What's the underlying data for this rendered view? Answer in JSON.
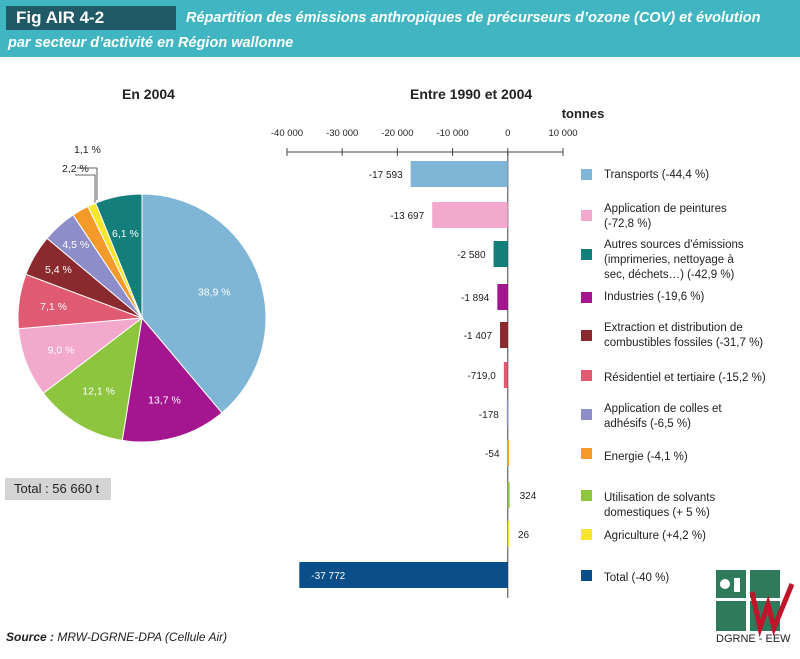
{
  "header": {
    "fig_tag": "Fig AIR 4-2",
    "title_line1": "Répartition des émissions anthropiques de précurseurs d’ozone (COV) et évolution",
    "title_line2": "par secteur d’activité en Région wallonne"
  },
  "left_subtitle": "En 2004",
  "right_subtitle": "Entre 1990 et 2004",
  "total_label": "Total : 56 660 t",
  "source_label": "Source :",
  "source_text": " MRW-DGRNE-DPA (Cellule Air)",
  "logo_text": "DGRNE - EEW",
  "chart_data": [
    {
      "type": "pie",
      "title": "En 2004",
      "slices": [
        {
          "label": "38,9 %",
          "value": 38.9,
          "color": "#7fb5d5"
        },
        {
          "label": "13,7 %",
          "value": 13.7,
          "color": "#a3168f"
        },
        {
          "label": "12,1 %",
          "value": 12.1,
          "color": "#8dc53e"
        },
        {
          "label": "9,0 %",
          "value": 9.0,
          "color": "#f3a9cd"
        },
        {
          "label": "7,1 %",
          "value": 7.1,
          "color": "#e05a72"
        },
        {
          "label": "5,4 %",
          "value": 5.4,
          "color": "#8b2a2e"
        },
        {
          "label": "4,5 %",
          "value": 4.5,
          "color": "#8c8dc9"
        },
        {
          "label": "2,2 %",
          "value": 2.2,
          "color": "#f39a2b"
        },
        {
          "label": "1,1 %",
          "value": 1.1,
          "color": "#f7e62d"
        },
        {
          "label": "6,1 %",
          "value": 6.1,
          "color": "#137e7a"
        }
      ]
    },
    {
      "type": "bar",
      "title": "Entre 1990 et 2004",
      "unit_label": "tonnes",
      "xlim": [
        -40000,
        10000
      ],
      "ticks": [
        -40000,
        -30000,
        -20000,
        -10000,
        0,
        10000
      ],
      "tick_labels": [
        "-40 000",
        "-30 000",
        "-20 000",
        "-10 000",
        "0",
        "10 000"
      ],
      "series": [
        {
          "category": "Transports (-44,4 %)",
          "value": -17593,
          "label": "-17 593",
          "color": "#7fb5d5"
        },
        {
          "category": "Application de peintures (-72,8 %)",
          "value": -13697,
          "label": "-13 697",
          "color": "#f3a9cd"
        },
        {
          "category": "Autres sources d'émissions (imprimeries, nettoyage à sec, déchets…) (-42,9 %)",
          "value": -2580,
          "label": "-2 580",
          "color": "#137e7a"
        },
        {
          "category": "Industries (-19,6 %)",
          "value": -1894,
          "label": "-1 894",
          "color": "#a3168f"
        },
        {
          "category": "Extraction et distribution de combustibles fossiles (-31,7 %)",
          "value": -1407,
          "label": "-1 407",
          "color": "#8b2a2e"
        },
        {
          "category": "Résidentiel et tertiaire (-15,2 %)",
          "value": -719.0,
          "label": "-719,0",
          "color": "#e05a72"
        },
        {
          "category": "Application de colles et adhésifs (-6,5 %)",
          "value": -178,
          "label": "-178",
          "color": "#8c8dc9"
        },
        {
          "category": "Energie (-4,1 %)",
          "value": -54,
          "label": "-54",
          "color": "#f39a2b"
        },
        {
          "category": "Utilisation de solvants domestiques (+ 5 %)",
          "value": 324,
          "label": "324",
          "color": "#8dc53e"
        },
        {
          "category": "Agriculture (+4,2 %)",
          "value": 26,
          "label": "26",
          "color": "#f7e62d"
        },
        {
          "category": "Total (-40 %)",
          "value": -37772,
          "label": "-37 772",
          "color": "#0b4f8a"
        }
      ]
    }
  ]
}
